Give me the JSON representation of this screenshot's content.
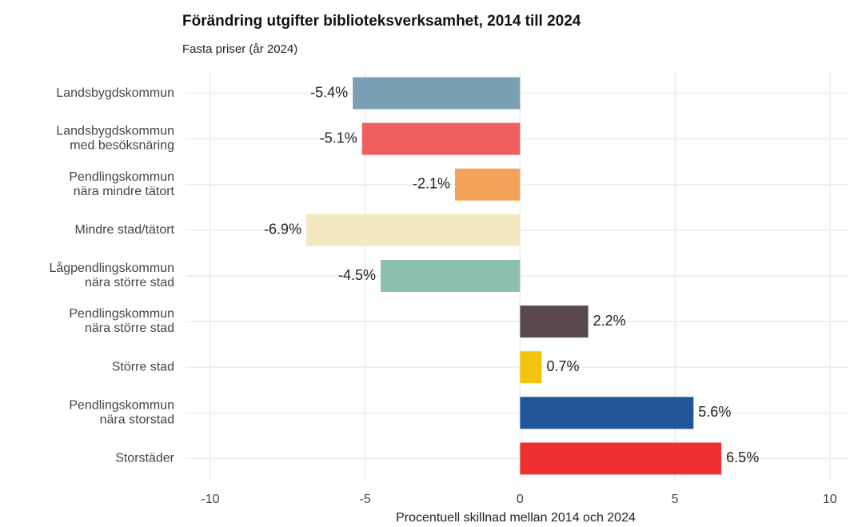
{
  "chart_data": {
    "type": "barh",
    "title": "Förändring utgifter biblioteksverksamhet, 2014 till 2024",
    "subtitle": "Fasta priser (år 2024)",
    "xlabel": "Procentuell skillnad mellan 2014 och 2024",
    "categories": [
      "Landsbygdskommun",
      "Landsbygdskommun\nmed besöksnäring",
      "Pendlingskommun\nnära mindre tätort",
      "Mindre stad/tätort",
      "Lågpendlingskommun\nnära större stad",
      "Pendlingskommun\nnära större stad",
      "Större stad",
      "Pendlingskommun\nnära storstad",
      "Storstäder"
    ],
    "values": [
      -5.4,
      -5.1,
      -2.1,
      -6.9,
      -4.5,
      2.2,
      0.7,
      5.6,
      6.5
    ],
    "value_labels": [
      "-5.4%",
      "-5.1%",
      "-2.1%",
      "-6.9%",
      "-4.5%",
      "2.2%",
      "0.7%",
      "5.6%",
      "6.5%"
    ],
    "colors": [
      "#7a9fb3",
      "#ef5f5f",
      "#f4a259",
      "#f2e9c1",
      "#8cbfaf",
      "#5a4a4f",
      "#f5c20e",
      "#22569a",
      "#ee3030"
    ],
    "xlim": [
      -10.8,
      10.6
    ],
    "xticks": [
      -10,
      -5,
      0,
      5,
      10
    ],
    "grid": true
  }
}
